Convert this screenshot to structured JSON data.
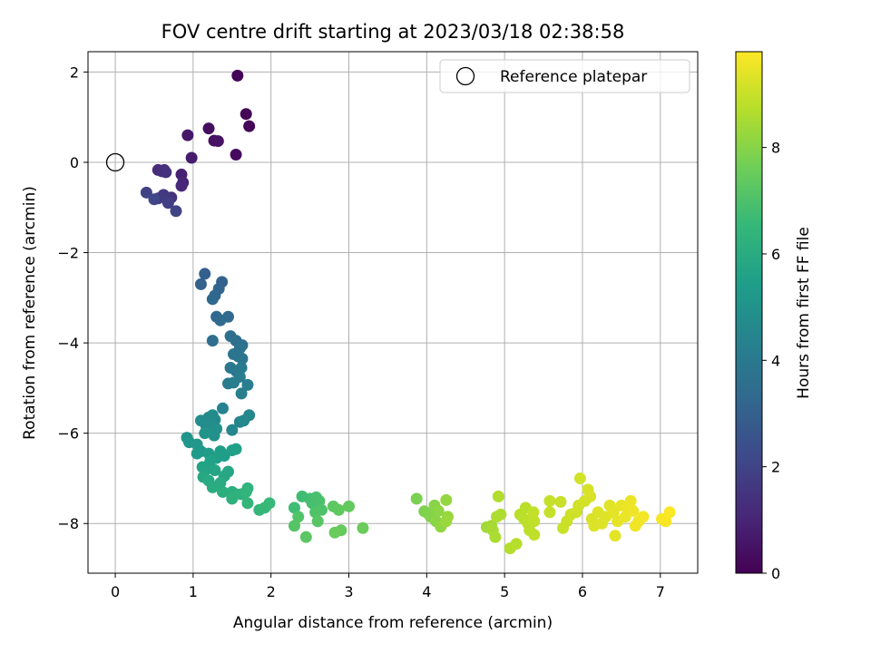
{
  "chart_data": {
    "type": "scatter",
    "title": "FOV centre drift starting at 2023/03/18 02:38:58",
    "xlabel": "Angular distance from reference (arcmin)",
    "ylabel": "Rotation from reference (arcmin)",
    "xlim": [
      -0.35,
      7.48
    ],
    "ylim": [
      -9.1,
      2.45
    ],
    "xticks": [
      0,
      1,
      2,
      3,
      4,
      5,
      6,
      7
    ],
    "yticks": [
      2,
      0,
      -2,
      -4,
      -6,
      -8
    ],
    "ytick_labels": [
      "2",
      "0",
      "−2",
      "−4",
      "−6",
      "−8"
    ],
    "grid": true,
    "legend": {
      "placement": "top-right",
      "entries": [
        {
          "label": "Reference platepar",
          "marker": "open-circle"
        }
      ]
    },
    "reference_point": {
      "x": 0,
      "y": 0
    },
    "colorbar": {
      "label": "Hours from first FF file",
      "range": [
        0,
        9.8
      ],
      "ticks": [
        0,
        2,
        4,
        6,
        8
      ],
      "colormap": "viridis",
      "colormap_stops": [
        "#440154",
        "#482878",
        "#3e4989",
        "#31688e",
        "#26828e",
        "#1f9e89",
        "#35b779",
        "#6ece58",
        "#b5de2b",
        "#fde725"
      ]
    },
    "series": [
      {
        "points": [
          {
            "x": 1.57,
            "y": 1.92,
            "t": 0.05
          },
          {
            "x": 1.68,
            "y": 1.07,
            "t": 0.1
          },
          {
            "x": 1.72,
            "y": 0.8,
            "t": 0.15
          },
          {
            "x": 1.55,
            "y": 0.17,
            "t": 0.25
          },
          {
            "x": 1.2,
            "y": 0.75,
            "t": 0.35
          },
          {
            "x": 1.27,
            "y": 0.48,
            "t": 0.45
          },
          {
            "x": 1.32,
            "y": 0.47,
            "t": 0.5
          },
          {
            "x": 0.93,
            "y": 0.6,
            "t": 0.6
          },
          {
            "x": 0.98,
            "y": 0.1,
            "t": 0.75
          },
          {
            "x": 0.85,
            "y": -0.27,
            "t": 0.9
          },
          {
            "x": 0.87,
            "y": -0.45,
            "t": 1.0
          },
          {
            "x": 0.85,
            "y": -0.52,
            "t": 1.1
          },
          {
            "x": 0.55,
            "y": -0.17,
            "t": 1.2
          },
          {
            "x": 0.6,
            "y": -0.2,
            "t": 1.3
          },
          {
            "x": 0.63,
            "y": -0.17,
            "t": 1.35
          },
          {
            "x": 0.65,
            "y": -0.22,
            "t": 1.4
          },
          {
            "x": 0.72,
            "y": -0.78,
            "t": 1.5
          },
          {
            "x": 0.65,
            "y": -0.8,
            "t": 1.6
          },
          {
            "x": 0.62,
            "y": -0.72,
            "t": 1.65
          },
          {
            "x": 0.55,
            "y": -0.8,
            "t": 1.7
          },
          {
            "x": 0.68,
            "y": -0.9,
            "t": 1.8
          },
          {
            "x": 0.4,
            "y": -0.67,
            "t": 1.9
          },
          {
            "x": 0.78,
            "y": -1.08,
            "t": 2.0
          },
          {
            "x": 0.5,
            "y": -0.82,
            "t": 2.1
          },
          {
            "x": 1.15,
            "y": -2.47,
            "t": 3.0
          },
          {
            "x": 1.1,
            "y": -2.7,
            "t": 3.05
          },
          {
            "x": 1.37,
            "y": -2.65,
            "t": 3.1
          },
          {
            "x": 1.33,
            "y": -2.8,
            "t": 3.15
          },
          {
            "x": 1.28,
            "y": -2.95,
            "t": 3.2
          },
          {
            "x": 1.25,
            "y": -3.03,
            "t": 3.25
          },
          {
            "x": 1.3,
            "y": -3.42,
            "t": 3.3
          },
          {
            "x": 1.45,
            "y": -3.42,
            "t": 3.35
          },
          {
            "x": 1.35,
            "y": -3.5,
            "t": 3.4
          },
          {
            "x": 1.25,
            "y": -3.95,
            "t": 3.5
          },
          {
            "x": 1.48,
            "y": -3.85,
            "t": 3.55
          },
          {
            "x": 1.55,
            "y": -3.95,
            "t": 3.6
          },
          {
            "x": 1.63,
            "y": -4.05,
            "t": 3.65
          },
          {
            "x": 1.6,
            "y": -4.12,
            "t": 3.7
          },
          {
            "x": 1.52,
            "y": -4.25,
            "t": 3.75
          },
          {
            "x": 1.58,
            "y": -4.3,
            "t": 3.8
          },
          {
            "x": 1.63,
            "y": -4.35,
            "t": 3.85
          },
          {
            "x": 1.48,
            "y": -4.55,
            "t": 3.9
          },
          {
            "x": 1.55,
            "y": -4.62,
            "t": 3.95
          },
          {
            "x": 1.62,
            "y": -4.55,
            "t": 4.0
          },
          {
            "x": 1.6,
            "y": -4.75,
            "t": 4.05
          },
          {
            "x": 1.45,
            "y": -4.9,
            "t": 4.1
          },
          {
            "x": 1.52,
            "y": -4.88,
            "t": 4.15
          },
          {
            "x": 1.7,
            "y": -4.93,
            "t": 4.2
          },
          {
            "x": 1.62,
            "y": -5.12,
            "t": 4.25
          },
          {
            "x": 1.38,
            "y": -5.45,
            "t": 4.35
          },
          {
            "x": 1.6,
            "y": -5.75,
            "t": 4.45
          },
          {
            "x": 1.72,
            "y": -5.6,
            "t": 4.5
          },
          {
            "x": 1.5,
            "y": -5.93,
            "t": 4.55
          },
          {
            "x": 1.65,
            "y": -5.72,
            "t": 4.6
          },
          {
            "x": 1.2,
            "y": -5.65,
            "t": 4.65
          },
          {
            "x": 1.25,
            "y": -5.6,
            "t": 4.7
          },
          {
            "x": 1.28,
            "y": -5.7,
            "t": 4.72
          },
          {
            "x": 1.1,
            "y": -5.72,
            "t": 4.75
          },
          {
            "x": 1.17,
            "y": -5.85,
            "t": 4.8
          },
          {
            "x": 1.22,
            "y": -5.95,
            "t": 4.85
          },
          {
            "x": 1.3,
            "y": -5.9,
            "t": 4.9
          },
          {
            "x": 1.27,
            "y": -6.05,
            "t": 4.95
          },
          {
            "x": 1.15,
            "y": -6.0,
            "t": 5.0
          },
          {
            "x": 0.92,
            "y": -6.1,
            "t": 5.1
          },
          {
            "x": 0.95,
            "y": -6.2,
            "t": 5.15
          },
          {
            "x": 1.05,
            "y": -6.25,
            "t": 5.2
          },
          {
            "x": 1.1,
            "y": -6.4,
            "t": 5.25
          },
          {
            "x": 1.05,
            "y": -6.45,
            "t": 5.3
          },
          {
            "x": 1.2,
            "y": -6.45,
            "t": 5.35
          },
          {
            "x": 1.35,
            "y": -6.4,
            "t": 5.4
          },
          {
            "x": 1.4,
            "y": -6.5,
            "t": 5.45
          },
          {
            "x": 1.5,
            "y": -6.38,
            "t": 5.5
          },
          {
            "x": 1.55,
            "y": -6.35,
            "t": 5.52
          },
          {
            "x": 1.3,
            "y": -6.55,
            "t": 5.55
          },
          {
            "x": 1.22,
            "y": -6.62,
            "t": 5.6
          },
          {
            "x": 1.12,
            "y": -6.75,
            "t": 5.65
          },
          {
            "x": 1.17,
            "y": -6.8,
            "t": 5.7
          },
          {
            "x": 1.28,
            "y": -6.82,
            "t": 5.75
          },
          {
            "x": 1.45,
            "y": -6.85,
            "t": 5.8
          },
          {
            "x": 1.4,
            "y": -6.95,
            "t": 5.85
          },
          {
            "x": 1.13,
            "y": -6.97,
            "t": 5.9
          },
          {
            "x": 1.2,
            "y": -7.05,
            "t": 5.95
          },
          {
            "x": 1.35,
            "y": -7.1,
            "t": 6.0
          },
          {
            "x": 1.25,
            "y": -7.2,
            "t": 6.05
          },
          {
            "x": 1.38,
            "y": -7.3,
            "t": 6.1
          },
          {
            "x": 1.5,
            "y": -7.3,
            "t": 6.15
          },
          {
            "x": 1.55,
            "y": -7.35,
            "t": 6.2
          },
          {
            "x": 1.5,
            "y": -7.45,
            "t": 6.25
          },
          {
            "x": 1.62,
            "y": -7.35,
            "t": 6.3
          },
          {
            "x": 1.7,
            "y": -7.22,
            "t": 6.35
          },
          {
            "x": 1.68,
            "y": -7.3,
            "t": 6.4
          },
          {
            "x": 1.7,
            "y": -7.55,
            "t": 6.45
          },
          {
            "x": 1.85,
            "y": -7.7,
            "t": 6.5
          },
          {
            "x": 1.92,
            "y": -7.65,
            "t": 6.55
          },
          {
            "x": 1.98,
            "y": -7.55,
            "t": 6.6
          },
          {
            "x": 2.3,
            "y": -7.65,
            "t": 6.7
          },
          {
            "x": 2.4,
            "y": -7.4,
            "t": 6.75
          },
          {
            "x": 2.5,
            "y": -7.45,
            "t": 6.8
          },
          {
            "x": 2.53,
            "y": -7.55,
            "t": 6.85
          },
          {
            "x": 2.58,
            "y": -7.42,
            "t": 6.9
          },
          {
            "x": 2.62,
            "y": -7.5,
            "t": 6.95
          },
          {
            "x": 2.65,
            "y": -7.7,
            "t": 7.0
          },
          {
            "x": 2.57,
            "y": -7.75,
            "t": 7.05
          },
          {
            "x": 2.35,
            "y": -7.85,
            "t": 7.1
          },
          {
            "x": 2.3,
            "y": -8.05,
            "t": 7.15
          },
          {
            "x": 2.6,
            "y": -7.95,
            "t": 7.2
          },
          {
            "x": 2.45,
            "y": -8.3,
            "t": 7.25
          },
          {
            "x": 2.8,
            "y": -7.62,
            "t": 7.3
          },
          {
            "x": 2.87,
            "y": -7.7,
            "t": 7.35
          },
          {
            "x": 3.0,
            "y": -7.62,
            "t": 7.4
          },
          {
            "x": 2.9,
            "y": -8.15,
            "t": 7.45
          },
          {
            "x": 2.82,
            "y": -8.2,
            "t": 7.5
          },
          {
            "x": 3.18,
            "y": -8.1,
            "t": 7.55
          },
          {
            "x": 3.87,
            "y": -7.45,
            "t": 7.8
          },
          {
            "x": 3.97,
            "y": -7.73,
            "t": 7.85
          },
          {
            "x": 4.02,
            "y": -7.78,
            "t": 7.9
          },
          {
            "x": 4.05,
            "y": -7.85,
            "t": 7.95
          },
          {
            "x": 4.1,
            "y": -7.6,
            "t": 8.0
          },
          {
            "x": 4.12,
            "y": -7.95,
            "t": 8.05
          },
          {
            "x": 4.15,
            "y": -7.72,
            "t": 8.1
          },
          {
            "x": 4.18,
            "y": -8.07,
            "t": 8.15
          },
          {
            "x": 4.25,
            "y": -7.48,
            "t": 8.2
          },
          {
            "x": 4.27,
            "y": -7.85,
            "t": 8.25
          },
          {
            "x": 4.25,
            "y": -7.95,
            "t": 8.3
          },
          {
            "x": 4.77,
            "y": -8.08,
            "t": 8.4
          },
          {
            "x": 4.83,
            "y": -8.05,
            "t": 8.45
          },
          {
            "x": 4.85,
            "y": -8.15,
            "t": 8.5
          },
          {
            "x": 4.88,
            "y": -8.3,
            "t": 8.55
          },
          {
            "x": 4.9,
            "y": -7.85,
            "t": 8.6
          },
          {
            "x": 4.95,
            "y": -7.8,
            "t": 8.62
          },
          {
            "x": 4.92,
            "y": -7.4,
            "t": 8.65
          },
          {
            "x": 5.07,
            "y": -8.55,
            "t": 8.7
          },
          {
            "x": 5.15,
            "y": -8.45,
            "t": 8.72
          },
          {
            "x": 5.2,
            "y": -7.8,
            "t": 8.75
          },
          {
            "x": 5.27,
            "y": -7.65,
            "t": 8.78
          },
          {
            "x": 5.25,
            "y": -7.9,
            "t": 8.8
          },
          {
            "x": 5.3,
            "y": -8.0,
            "t": 8.82
          },
          {
            "x": 5.32,
            "y": -8.15,
            "t": 8.85
          },
          {
            "x": 5.38,
            "y": -8.25,
            "t": 8.88
          },
          {
            "x": 5.38,
            "y": -7.95,
            "t": 8.9
          },
          {
            "x": 5.37,
            "y": -7.75,
            "t": 8.92
          },
          {
            "x": 5.58,
            "y": -7.5,
            "t": 8.95
          },
          {
            "x": 5.58,
            "y": -7.75,
            "t": 8.97
          },
          {
            "x": 5.72,
            "y": -7.52,
            "t": 9.0
          },
          {
            "x": 5.75,
            "y": -8.1,
            "t": 9.02
          },
          {
            "x": 5.8,
            "y": -7.95,
            "t": 9.05
          },
          {
            "x": 5.85,
            "y": -7.8,
            "t": 9.07
          },
          {
            "x": 5.92,
            "y": -7.75,
            "t": 9.1
          },
          {
            "x": 5.95,
            "y": -7.6,
            "t": 9.12
          },
          {
            "x": 5.97,
            "y": -7.0,
            "t": 9.15
          },
          {
            "x": 6.03,
            "y": -7.5,
            "t": 9.17
          },
          {
            "x": 6.07,
            "y": -7.25,
            "t": 9.2
          },
          {
            "x": 6.1,
            "y": -7.4,
            "t": 9.22
          },
          {
            "x": 6.12,
            "y": -7.9,
            "t": 9.25
          },
          {
            "x": 6.15,
            "y": -8.05,
            "t": 9.27
          },
          {
            "x": 6.2,
            "y": -7.75,
            "t": 9.3
          },
          {
            "x": 6.25,
            "y": -8.0,
            "t": 9.32
          },
          {
            "x": 6.3,
            "y": -7.85,
            "t": 9.35
          },
          {
            "x": 6.35,
            "y": -7.6,
            "t": 9.37
          },
          {
            "x": 6.4,
            "y": -7.75,
            "t": 9.4
          },
          {
            "x": 6.42,
            "y": -8.27,
            "t": 9.42
          },
          {
            "x": 6.45,
            "y": -7.95,
            "t": 9.45
          },
          {
            "x": 6.5,
            "y": -7.6,
            "t": 9.47
          },
          {
            "x": 6.55,
            "y": -7.85,
            "t": 9.5
          },
          {
            "x": 6.58,
            "y": -7.65,
            "t": 9.52
          },
          {
            "x": 6.62,
            "y": -7.5,
            "t": 9.55
          },
          {
            "x": 6.65,
            "y": -7.72,
            "t": 9.57
          },
          {
            "x": 6.68,
            "y": -8.05,
            "t": 9.6
          },
          {
            "x": 6.72,
            "y": -7.95,
            "t": 9.62
          },
          {
            "x": 6.78,
            "y": -7.85,
            "t": 9.65
          },
          {
            "x": 7.02,
            "y": -7.9,
            "t": 9.7
          },
          {
            "x": 7.07,
            "y": -7.95,
            "t": 9.72
          },
          {
            "x": 7.12,
            "y": -7.75,
            "t": 9.75
          }
        ]
      }
    ]
  }
}
